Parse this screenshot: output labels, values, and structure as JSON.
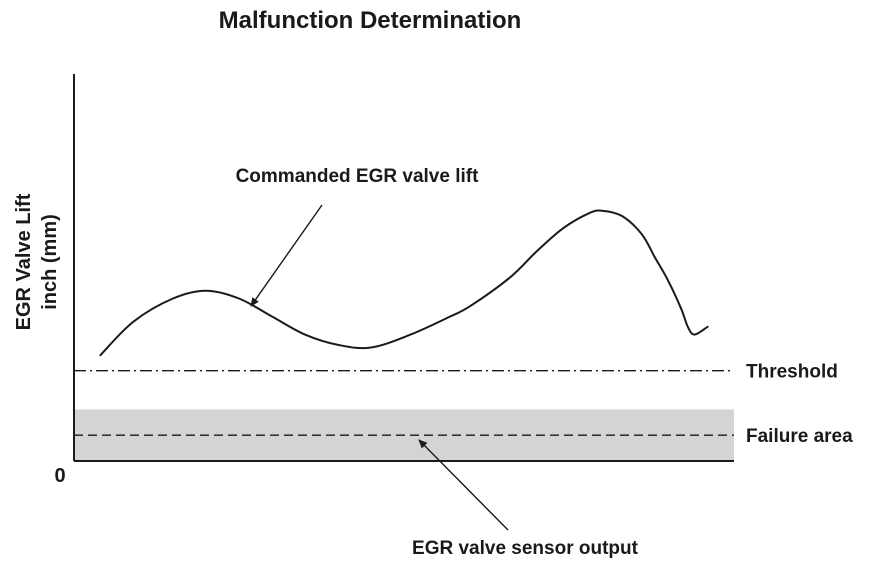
{
  "chart_data": {
    "type": "line",
    "title": "Malfunction Determination",
    "ylabel_line1": "EGR Valve Lift",
    "ylabel_line2": "inch (mm)",
    "y_origin_label": "0",
    "ylim": [
      0,
      15
    ],
    "xlim": [
      0,
      100
    ],
    "series": [
      {
        "name": "Commanded EGR valve lift",
        "style": "solid",
        "color": "#1a1a1a",
        "x": [
          4,
          9,
          15,
          20,
          25,
          30,
          35,
          40,
          45,
          51,
          57,
          60,
          66,
          70,
          74,
          78,
          80,
          83,
          86,
          88,
          90,
          92,
          93,
          94,
          96
        ],
        "y": [
          4.1,
          5.4,
          6.3,
          6.6,
          6.3,
          5.6,
          4.9,
          4.5,
          4.4,
          4.9,
          5.6,
          6.0,
          7.1,
          8.1,
          9.0,
          9.6,
          9.7,
          9.5,
          8.8,
          7.9,
          7.0,
          5.9,
          5.2,
          4.9,
          5.2
        ]
      },
      {
        "name": "EGR valve sensor output",
        "style": "dashed",
        "color": "#1a1a1a",
        "x": [
          0,
          100
        ],
        "y": [
          1.0,
          1.0
        ]
      }
    ],
    "threshold": {
      "label": "Threshold",
      "value": 3.5,
      "style": "dash-dot"
    },
    "failure_area": {
      "label": "Failure area",
      "from": 0,
      "to": 2.0,
      "color": "#d4d4d4"
    },
    "annotations": [
      {
        "text": "Commanded EGR valve lift",
        "points_to": "Commanded EGR valve lift",
        "at_x": 24
      },
      {
        "text": "EGR valve sensor output",
        "points_to": "EGR valve sensor output",
        "at_x": 47
      }
    ],
    "grid": false,
    "legend": "none"
  }
}
